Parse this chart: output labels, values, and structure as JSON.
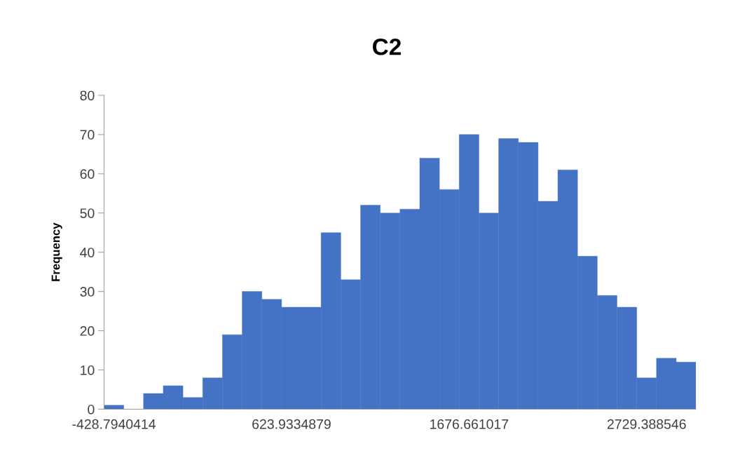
{
  "chart_data": {
    "type": "bar",
    "title": "C2",
    "ylabel": "Frequency",
    "categories": [
      "-428.7940414",
      null,
      null,
      null,
      null,
      null,
      null,
      null,
      null,
      "623.9334879",
      null,
      null,
      null,
      null,
      null,
      null,
      null,
      null,
      "1676.661017",
      null,
      null,
      null,
      null,
      null,
      null,
      null,
      null,
      "2729.388546",
      null,
      null
    ],
    "values": [
      1,
      0,
      4,
      6,
      3,
      8,
      19,
      30,
      28,
      26,
      26,
      45,
      33,
      52,
      50,
      51,
      64,
      56,
      70,
      50,
      69,
      68,
      53,
      61,
      39,
      29,
      26,
      8,
      13,
      12
    ],
    "color": "#4472c4",
    "ylim": [
      0,
      80
    ],
    "yticks": [
      0,
      10,
      20,
      30,
      40,
      50,
      60,
      70,
      80
    ],
    "grid": false,
    "legend": false
  }
}
